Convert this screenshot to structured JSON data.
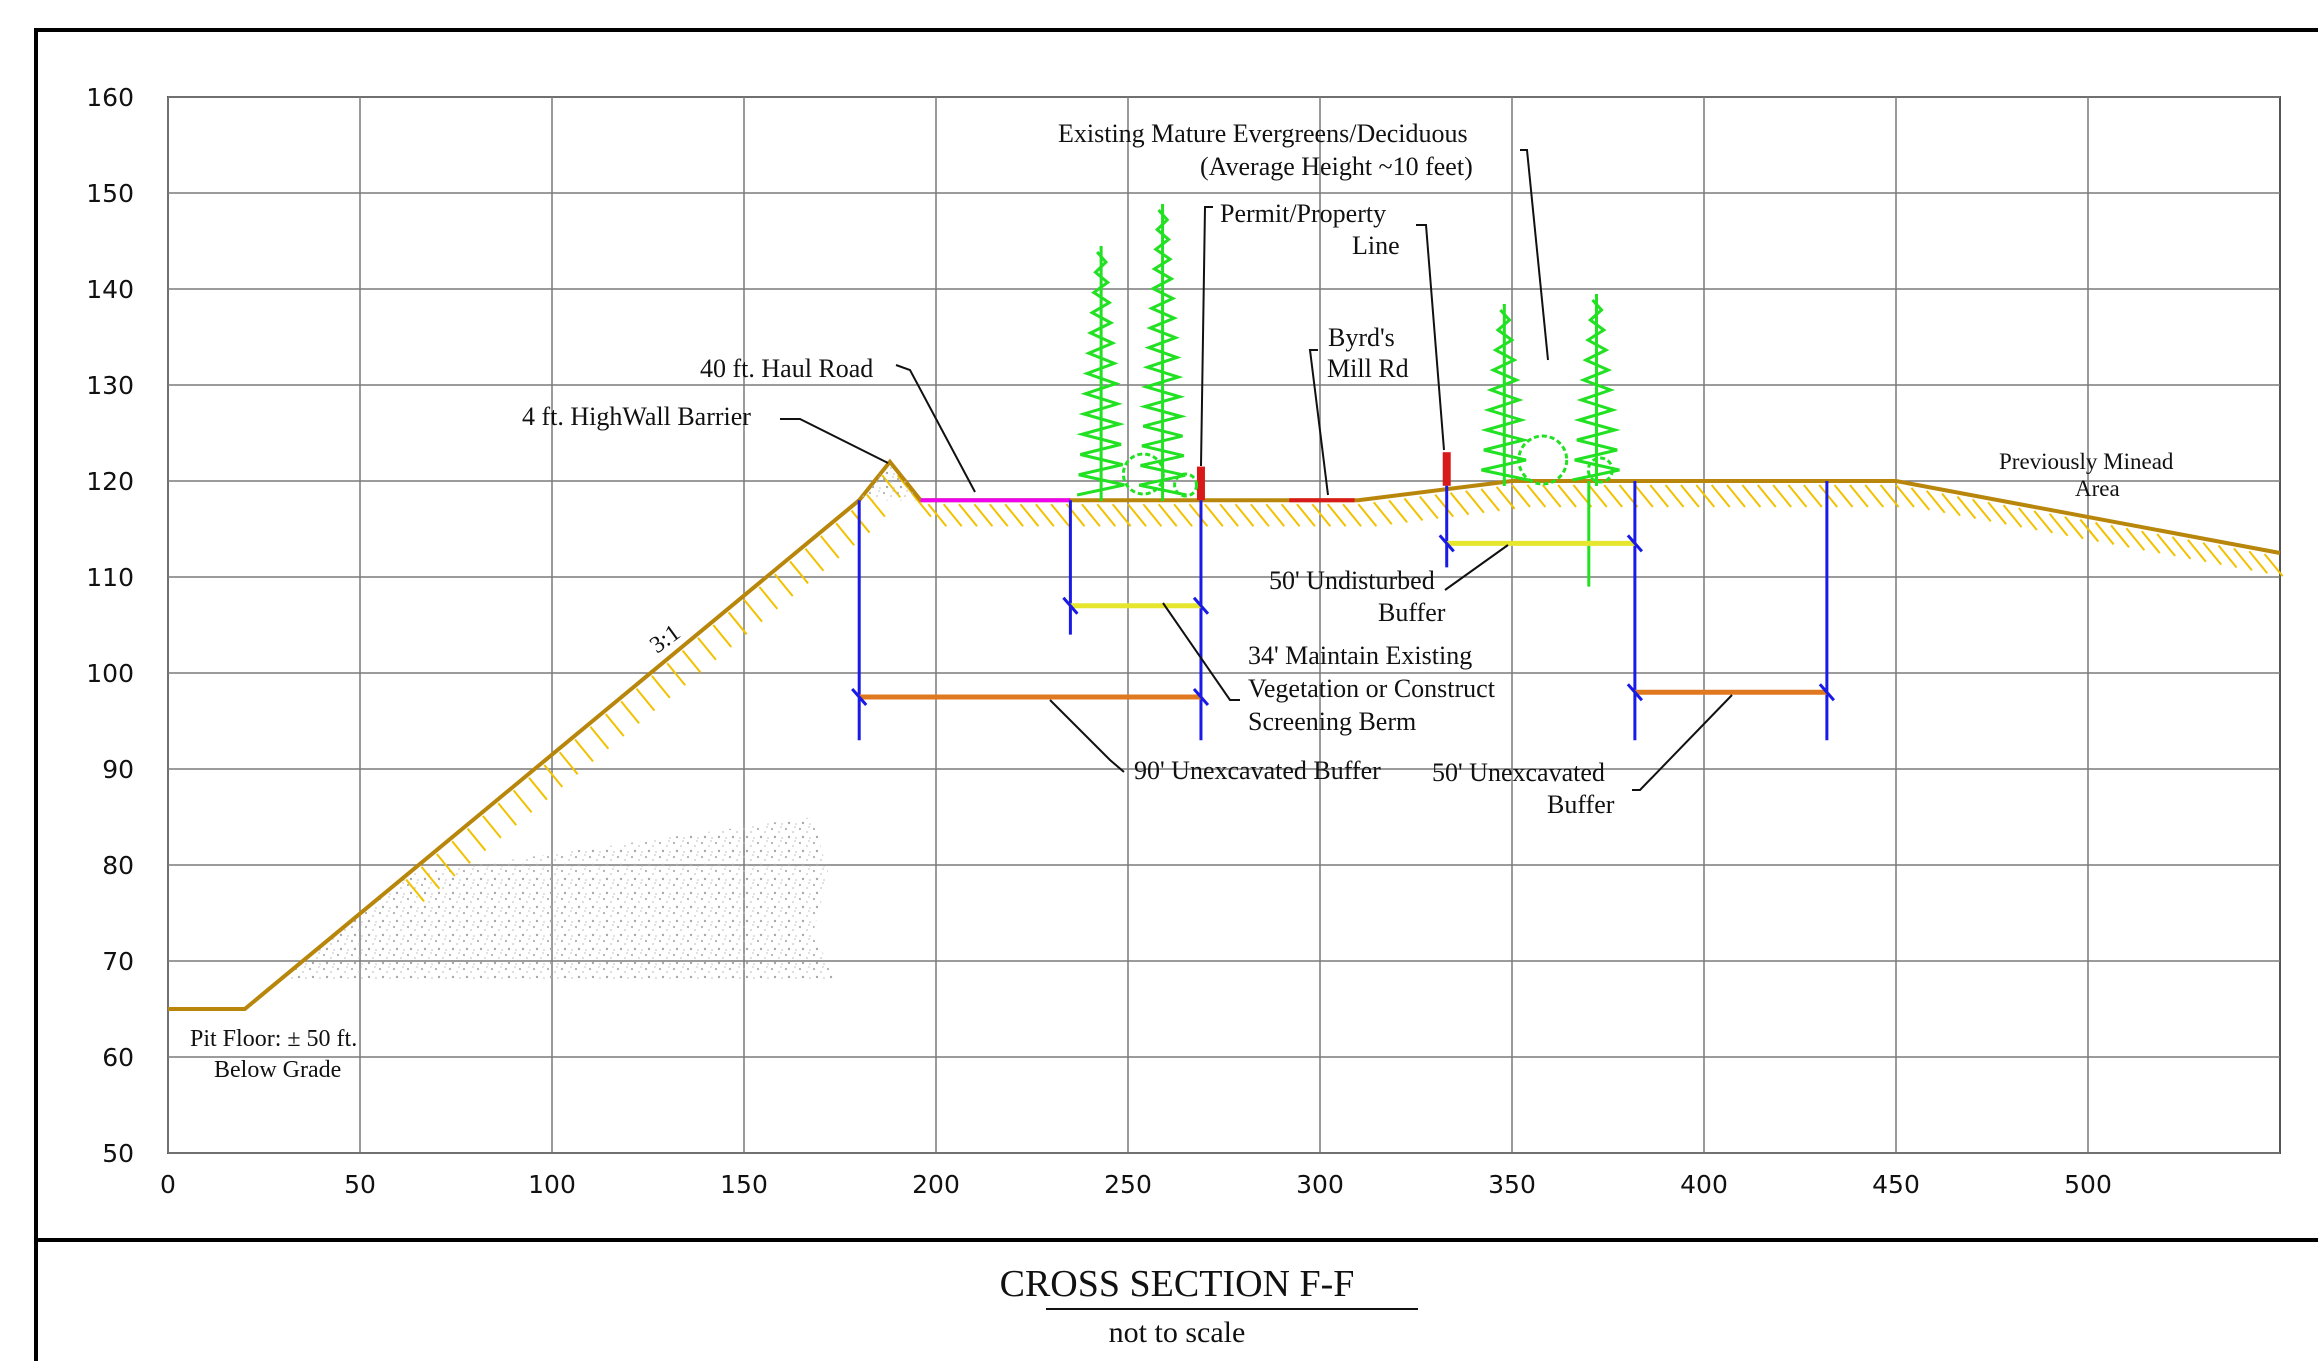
{
  "colors": {
    "ground": "#B8860B",
    "hatch": "#F2C200",
    "tree": "#22E022",
    "blue": "#1A1AE6",
    "yellow": "#E6E62E",
    "orange": "#E07820",
    "magenta": "#F000F0",
    "red": "#D91A1A",
    "grid": "#7a7a7a"
  },
  "chart_data": {
    "type": "diagram",
    "xlim": [
      0,
      550
    ],
    "ylim": [
      50,
      160
    ],
    "x_ticks": [
      0,
      50,
      100,
      150,
      200,
      250,
      300,
      350,
      400,
      450,
      500
    ],
    "y_ticks": [
      160,
      150,
      140,
      130,
      120,
      110,
      100,
      90,
      80,
      70,
      60,
      50
    ],
    "grid": true,
    "ground_profile": [
      [
        0,
        65
      ],
      [
        20,
        65
      ],
      [
        180,
        118
      ],
      [
        188,
        122
      ],
      [
        196,
        118
      ],
      [
        310,
        118
      ],
      [
        350,
        120
      ],
      [
        450,
        120
      ],
      [
        550,
        112.5
      ]
    ],
    "labels": {
      "haul_road": "40 ft. Haul Road",
      "highwall": "4 ft. HighWall Barrier",
      "slope": "3:1",
      "vegetation_1": "Existing Mature Evergreens/Deciduous",
      "vegetation_2": "(Average Height ~10 feet)",
      "permit_1": "Permit/Property",
      "permit_2": "Line",
      "road_1": "Byrd's",
      "road_2": "Mill Rd",
      "prev_1": "Previously Minead",
      "prev_2": "Area",
      "undisturbed_1": "50' Undisturbed",
      "undisturbed_2": "Buffer",
      "maintain_1": "34' Maintain Existing",
      "maintain_2": "Vegetation or Construct",
      "maintain_3": "Screening Berm",
      "unexc90": "90' Unexcavated Buffer",
      "unexc50_1": "50' Unexcavated",
      "unexc50_2": "Buffer",
      "pit_1": "Pit Floor: ±  50 ft.",
      "pit_2": "Below Grade"
    }
  },
  "title_block": {
    "title": "CROSS SECTION F-F",
    "subtitle": "not to scale"
  }
}
